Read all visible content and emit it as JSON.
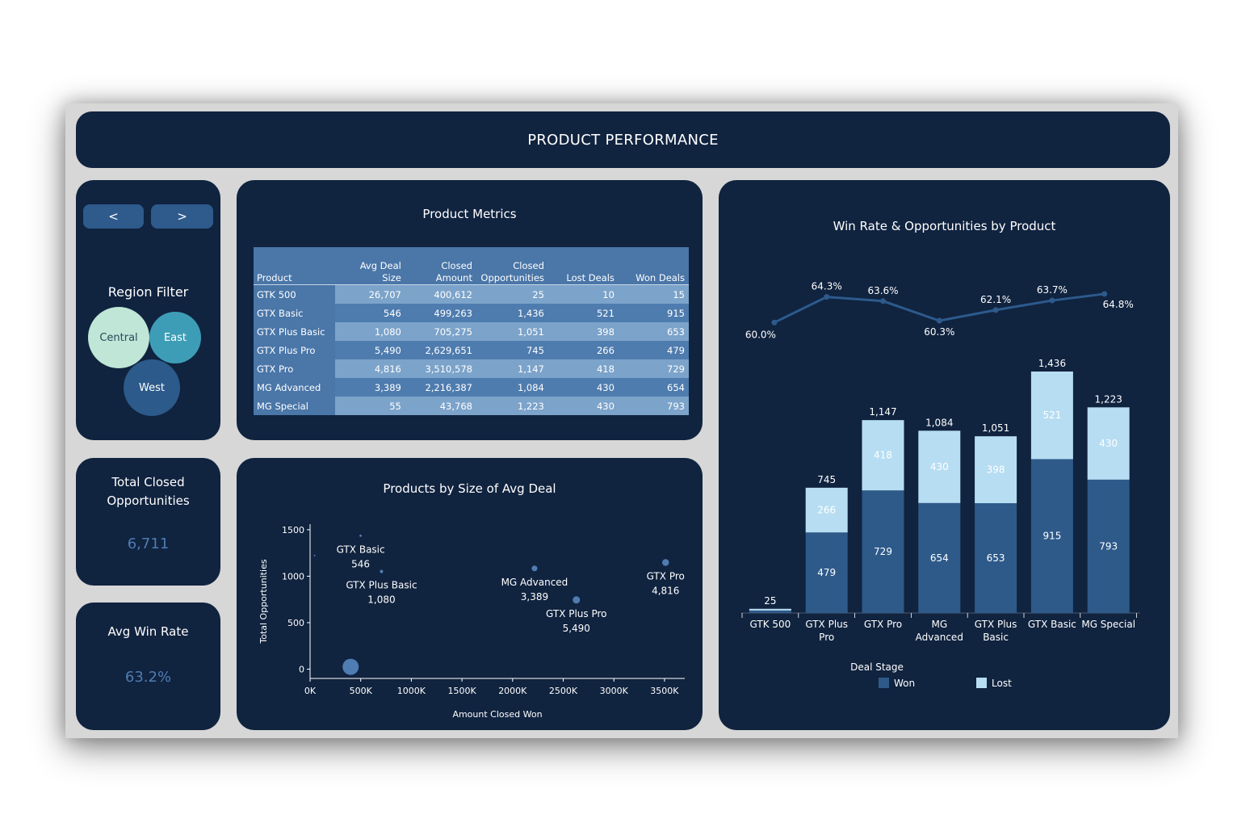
{
  "header": {
    "title": "PRODUCT PERFORMANCE"
  },
  "nav": {
    "prev_label": "<",
    "next_label": ">"
  },
  "region_filter": {
    "title": "Region Filter",
    "regions": [
      {
        "label": "Central",
        "color": "#bfe6d6",
        "text_color": "#234a5c"
      },
      {
        "label": "East",
        "color": "#3e9db6",
        "text_color": "#ffffff"
      },
      {
        "label": "West",
        "color": "#2c5a8a",
        "text_color": "#ffffff"
      }
    ]
  },
  "kpis": {
    "total_closed": {
      "title_line1": "Total Closed",
      "title_line2": "Opportunities",
      "value": "6,711"
    },
    "avg_win_rate": {
      "title": "Avg Win Rate",
      "value": "63.2%"
    }
  },
  "product_metrics": {
    "title": "Product Metrics",
    "columns": [
      {
        "line1": "",
        "line2": "Product"
      },
      {
        "line1": "",
        "line2": "Avg Deal Size"
      },
      {
        "line1": "Closed",
        "line2": "Amount"
      },
      {
        "line1": "Closed",
        "line2": "Opportunities"
      },
      {
        "line1": "",
        "line2": "Lost Deals"
      },
      {
        "line1": "",
        "line2": "Won Deals"
      }
    ],
    "rows": [
      {
        "product": "GTK 500",
        "avg_deal": "26,707",
        "closed_amount": "400,612",
        "closed_opps": "25",
        "lost": "10",
        "won": "15"
      },
      {
        "product": "GTX Basic",
        "avg_deal": "546",
        "closed_amount": "499,263",
        "closed_opps": "1,436",
        "lost": "521",
        "won": "915"
      },
      {
        "product": "GTX Plus Basic",
        "avg_deal": "1,080",
        "closed_amount": "705,275",
        "closed_opps": "1,051",
        "lost": "398",
        "won": "653"
      },
      {
        "product": "GTX Plus Pro",
        "avg_deal": "5,490",
        "closed_amount": "2,629,651",
        "closed_opps": "745",
        "lost": "266",
        "won": "479"
      },
      {
        "product": "GTX Pro",
        "avg_deal": "4,816",
        "closed_amount": "3,510,578",
        "closed_opps": "1,147",
        "lost": "418",
        "won": "729"
      },
      {
        "product": "MG Advanced",
        "avg_deal": "3,389",
        "closed_amount": "2,216,387",
        "closed_opps": "1,084",
        "lost": "430",
        "won": "654"
      },
      {
        "product": "MG Special",
        "avg_deal": "55",
        "closed_amount": "43,768",
        "closed_opps": "1,223",
        "lost": "430",
        "won": "793"
      }
    ]
  },
  "chart_data": [
    {
      "type": "scatter",
      "title": "Products by Size of Avg Deal",
      "xlabel": "Amount Closed Won",
      "ylabel": "Total Opportunities",
      "xlim": [
        0,
        3700000
      ],
      "ylim": [
        -100,
        1560
      ],
      "x_ticks": [
        {
          "value": 0,
          "label": "0K"
        },
        {
          "value": 500000,
          "label": "500K"
        },
        {
          "value": 1000000,
          "label": "1000K"
        },
        {
          "value": 1500000,
          "label": "1500K"
        },
        {
          "value": 2000000,
          "label": "2000K"
        },
        {
          "value": 2500000,
          "label": "2500K"
        },
        {
          "value": 3000000,
          "label": "3000K"
        },
        {
          "value": 3500000,
          "label": "3500K"
        }
      ],
      "y_ticks": [
        {
          "value": 0,
          "label": "0"
        },
        {
          "value": 500,
          "label": "500"
        },
        {
          "value": 1000,
          "label": "1000"
        },
        {
          "value": 1500,
          "label": "1500"
        }
      ],
      "points": [
        {
          "name": "GTX Basic",
          "label_value": "546",
          "x": 499263,
          "y": 1436,
          "size": 546,
          "label_pos": "below"
        },
        {
          "name": "GTX Plus Basic",
          "label_value": "1,080",
          "x": 705275,
          "y": 1051,
          "size": 1080,
          "label_pos": "below"
        },
        {
          "name": "MG Advanced",
          "label_value": "3,389",
          "x": 2216387,
          "y": 1084,
          "size": 3389,
          "label_pos": "below"
        },
        {
          "name": "GTX Plus Pro",
          "label_value": "5,490",
          "x": 2629651,
          "y": 745,
          "size": 5490,
          "label_pos": "below"
        },
        {
          "name": "GTX Pro",
          "label_value": "4,816",
          "x": 3510578,
          "y": 1147,
          "size": 4816,
          "label_pos": "below"
        },
        {
          "name": "MG Special",
          "label_value": "",
          "x": 43768,
          "y": 1223,
          "size": 55,
          "label_pos": "none"
        },
        {
          "name": "GTK 500",
          "label_value": "",
          "x": 400612,
          "y": 25,
          "size": 26707,
          "label_pos": "none"
        }
      ]
    },
    {
      "type": "bar",
      "stacked": true,
      "title": "Win Rate & Opportunities by Product",
      "categories": [
        {
          "line1": "GTK 500",
          "line2": ""
        },
        {
          "line1": "GTX Plus",
          "line2": "Pro"
        },
        {
          "line1": "GTX Pro",
          "line2": ""
        },
        {
          "line1": "MG",
          "line2": "Advanced"
        },
        {
          "line1": "GTX Plus",
          "line2": "Basic"
        },
        {
          "line1": "GTX Basic",
          "line2": ""
        },
        {
          "line1": "MG Special",
          "line2": ""
        }
      ],
      "series": [
        {
          "name": "Won",
          "color": "#2e5a8a",
          "values": [
            15,
            479,
            729,
            654,
            653,
            915,
            793
          ]
        },
        {
          "name": "Lost",
          "color": "#b7ddf2",
          "values": [
            10,
            266,
            418,
            430,
            398,
            521,
            430
          ]
        }
      ],
      "totals": [
        "25",
        "745",
        "1,147",
        "1,084",
        "1,051",
        "1,436",
        "1,223"
      ],
      "win_rate": {
        "values": [
          60.0,
          64.3,
          63.6,
          60.3,
          62.1,
          63.7,
          64.8
        ],
        "labels": [
          "60.0%",
          "64.3%",
          "63.6%",
          "60.3%",
          "62.1%",
          "63.7%",
          "64.8%"
        ],
        "label_pos": [
          "below-left",
          "above",
          "above",
          "below",
          "above",
          "above",
          "below-right"
        ],
        "color": "#2d5a8c"
      },
      "legend": {
        "title": "Deal Stage",
        "position": "bottom"
      },
      "ylim": [
        0,
        1436
      ]
    }
  ]
}
